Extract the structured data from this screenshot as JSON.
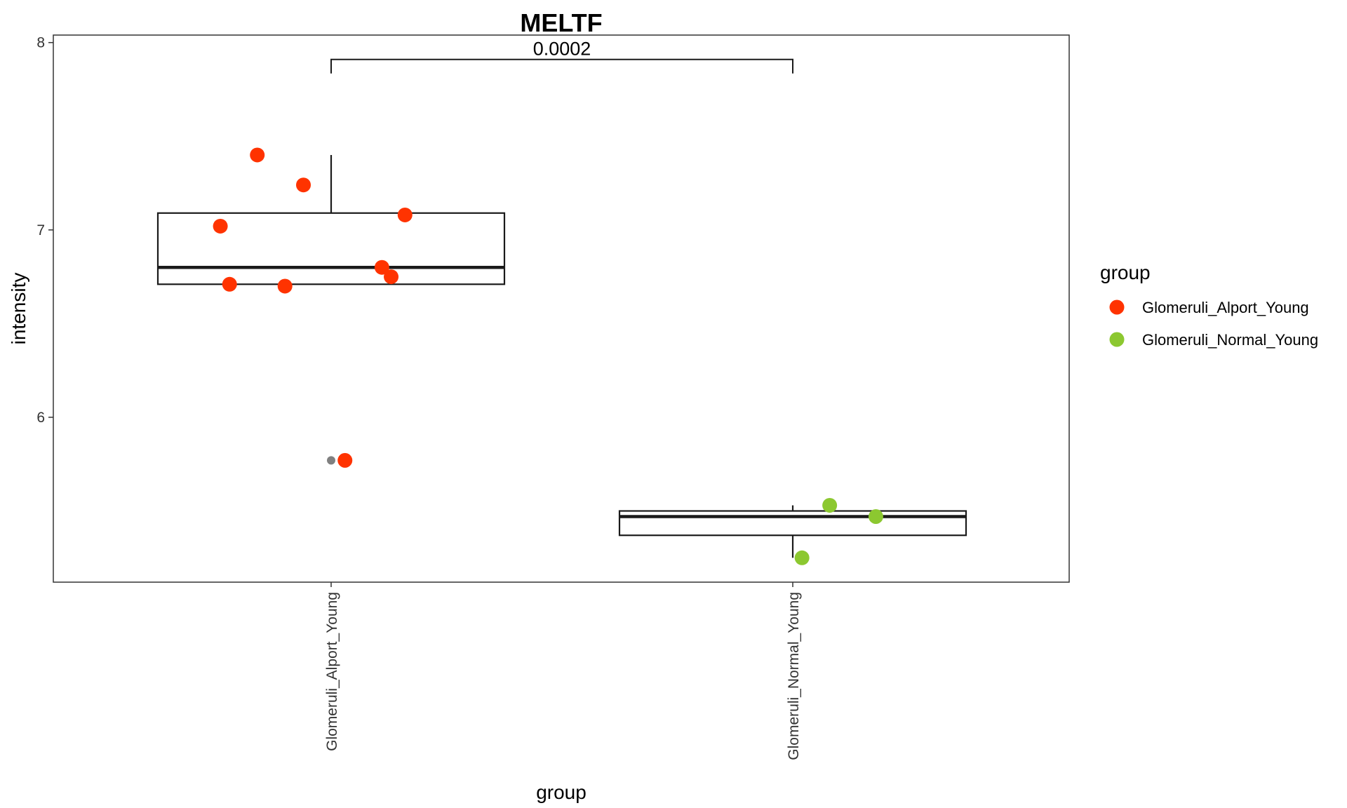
{
  "chart_data": {
    "type": "box",
    "title": "MELTF",
    "xlabel": "group",
    "ylabel": "intensity",
    "ylim": [
      5.12,
      8.04
    ],
    "y_ticks": [
      "6",
      "7",
      "8"
    ],
    "categories": [
      "Glomeruli_Alport_Young",
      "Glomeruli_Normal_Young"
    ],
    "legend": {
      "title": "group",
      "position": "right",
      "entries": [
        {
          "label": "Glomeruli_Alport_Young",
          "color": "#FF3300"
        },
        {
          "label": "Glomeruli_Normal_Young",
          "color": "#8CC830"
        }
      ]
    },
    "comparison": {
      "label": "0.0002",
      "from": "Glomeruli_Alport_Young",
      "to": "Glomeruli_Normal_Young",
      "y": 7.91
    },
    "boxes": [
      {
        "category": "Glomeruli_Alport_Young",
        "whisker_low": 6.71,
        "q1": 6.71,
        "median": 6.8,
        "q3": 7.09,
        "whisker_high": 7.4,
        "outliers": [
          5.77
        ]
      },
      {
        "category": "Glomeruli_Normal_Young",
        "whisker_low": 5.25,
        "q1": 5.37,
        "median": 5.47,
        "q3": 5.5,
        "whisker_high": 5.53,
        "outliers": []
      }
    ],
    "points": [
      {
        "category": "Glomeruli_Alport_Young",
        "jitter": -0.16,
        "y": 7.4
      },
      {
        "category": "Glomeruli_Alport_Young",
        "jitter": -0.06,
        "y": 7.24
      },
      {
        "category": "Glomeruli_Alport_Young",
        "jitter": 0.16,
        "y": 7.08
      },
      {
        "category": "Glomeruli_Alport_Young",
        "jitter": -0.24,
        "y": 7.02
      },
      {
        "category": "Glomeruli_Alport_Young",
        "jitter": 0.11,
        "y": 6.8
      },
      {
        "category": "Glomeruli_Alport_Young",
        "jitter": 0.13,
        "y": 6.75
      },
      {
        "category": "Glomeruli_Alport_Young",
        "jitter": -0.22,
        "y": 6.71
      },
      {
        "category": "Glomeruli_Alport_Young",
        "jitter": -0.1,
        "y": 6.7
      },
      {
        "category": "Glomeruli_Alport_Young",
        "jitter": 0.03,
        "y": 5.77
      },
      {
        "category": "Glomeruli_Normal_Young",
        "jitter": 0.08,
        "y": 5.53
      },
      {
        "category": "Glomeruli_Normal_Young",
        "jitter": 0.18,
        "y": 5.47
      },
      {
        "category": "Glomeruli_Normal_Young",
        "jitter": 0.02,
        "y": 5.25
      }
    ],
    "grid": false,
    "outlier_color": "#808080"
  }
}
